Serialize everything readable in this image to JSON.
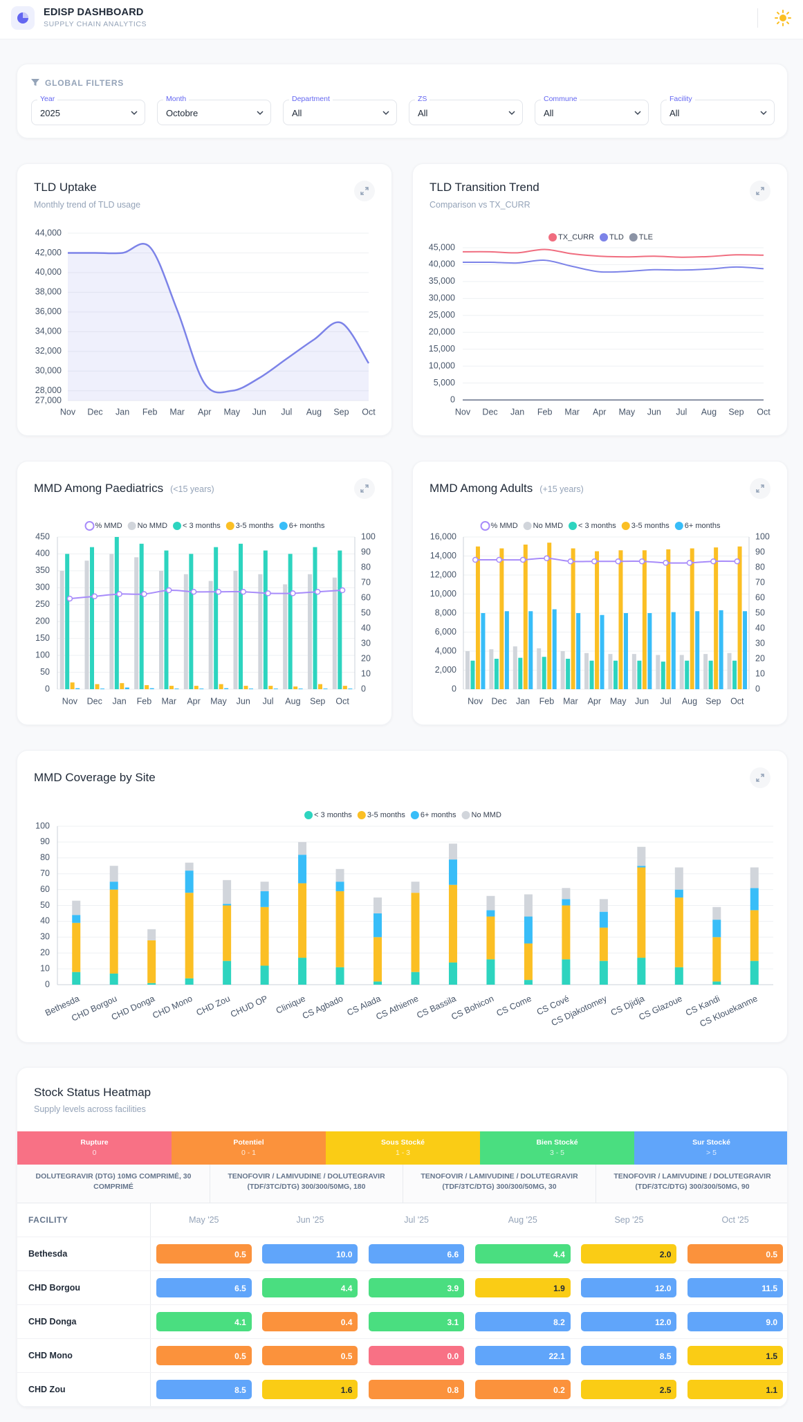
{
  "header": {
    "title": "EDISP DASHBOARD",
    "subtitle": "SUPPLY CHAIN ANALYTICS"
  },
  "filters": {
    "title": "GLOBAL FILTERS",
    "items": [
      {
        "label": "Year",
        "value": "2025"
      },
      {
        "label": "Month",
        "value": "Octobre"
      },
      {
        "label": "Department",
        "value": "All"
      },
      {
        "label": "ZS",
        "value": "All"
      },
      {
        "label": "Commune",
        "value": "All"
      },
      {
        "label": "Facility",
        "value": "All"
      }
    ]
  },
  "chart_data": [
    {
      "type": "area",
      "title": "TLD Uptake",
      "subtitle": "Monthly trend of TLD usage",
      "categories": [
        "Nov",
        "Dec",
        "Jan",
        "Feb",
        "Mar",
        "Apr",
        "May",
        "Jun",
        "Jul",
        "Aug",
        "Sep",
        "Oct"
      ],
      "values": [
        42000,
        42000,
        42000,
        42600,
        36200,
        28750,
        28000,
        29300,
        31250,
        33200,
        34900,
        30800
      ],
      "color": "#7c83e8",
      "ylim": [
        27000,
        44000
      ],
      "yticks": [
        {
          "value": 27000,
          "label": "27,000"
        },
        {
          "value": 28000,
          "label": "28,000"
        },
        {
          "value": 30000,
          "label": "30,000"
        },
        {
          "value": 32000,
          "label": "32,000"
        },
        {
          "value": 34000,
          "label": "34,000"
        },
        {
          "value": 36000,
          "label": "36,000"
        },
        {
          "value": 38000,
          "label": "38,000"
        },
        {
          "value": 40000,
          "label": "40,000"
        },
        {
          "value": 42000,
          "label": "42,000"
        },
        {
          "value": 44000,
          "label": "44,000"
        }
      ],
      "grid": true
    },
    {
      "type": "line",
      "title": "TLD Transition Trend",
      "subtitle": "Comparison vs TX_CURR",
      "categories": [
        "Nov",
        "Dec",
        "Jan",
        "Feb",
        "Mar",
        "Apr",
        "May",
        "Jun",
        "Jul",
        "Aug",
        "Sep",
        "Oct"
      ],
      "series": [
        {
          "name": "TX_CURR",
          "color": "#f06d7f",
          "values": [
            43800,
            43800,
            43500,
            44500,
            43200,
            42500,
            42300,
            42500,
            42200,
            42400,
            42900,
            42800
          ]
        },
        {
          "name": "TLD",
          "color": "#7c83e8",
          "values": [
            40700,
            40700,
            40500,
            41300,
            39500,
            37900,
            38000,
            38500,
            38400,
            38700,
            39300,
            38800
          ]
        },
        {
          "name": "TLE",
          "color": "#8b93a5",
          "values": [
            0,
            0,
            0,
            0,
            0,
            0,
            0,
            0,
            0,
            0,
            0,
            0
          ]
        }
      ],
      "ylim": [
        0,
        45000
      ],
      "yticks": [
        0,
        {
          "value": 5000,
          "label": "5,000"
        },
        {
          "value": 10000,
          "label": "10,000"
        },
        {
          "value": 15000,
          "label": "15,000"
        },
        {
          "value": 20000,
          "label": "20,000"
        },
        {
          "value": 25000,
          "label": "25,000"
        },
        {
          "value": 30000,
          "label": "30,000"
        },
        {
          "value": 35000,
          "label": "35,000"
        },
        {
          "value": 40000,
          "label": "40,000"
        },
        {
          "value": 45000,
          "label": "45,000"
        }
      ],
      "grid": true,
      "legend": "top"
    },
    {
      "type": "combo",
      "title": "MMD Among Paediatrics",
      "subtitle": "(<15 years)",
      "categories": [
        "Nov",
        "Dec",
        "Jan",
        "Feb",
        "Mar",
        "Apr",
        "May",
        "Jun",
        "Jul",
        "Aug",
        "Sep",
        "Oct"
      ],
      "series": [
        {
          "name": "% MMD",
          "color": "#a78bfa",
          "kind": "line",
          "axis": "y2",
          "values": [
            59.5,
            61,
            62.5,
            62.5,
            65,
            64,
            64,
            64,
            63,
            63,
            64,
            65
          ]
        },
        {
          "name": "No MMD",
          "color": "#d1d5db",
          "kind": "bar",
          "values": [
            350,
            380,
            400,
            390,
            350,
            340,
            320,
            350,
            340,
            310,
            340,
            330
          ]
        },
        {
          "name": "< 3 months",
          "color": "#2dd4bf",
          "kind": "bar",
          "values": [
            400,
            420,
            450,
            430,
            410,
            400,
            420,
            430,
            410,
            400,
            420,
            410
          ]
        },
        {
          "name": "3-5 months",
          "color": "#fbbf24",
          "kind": "bar",
          "values": [
            20,
            15,
            18,
            12,
            10,
            10,
            15,
            10,
            10,
            8,
            15,
            10
          ]
        },
        {
          "name": "6+ months",
          "color": "#38bdf8",
          "kind": "bar",
          "values": [
            3,
            2,
            5,
            3,
            2,
            2,
            3,
            2,
            2,
            2,
            2,
            2
          ]
        }
      ],
      "ylim": [
        0,
        450
      ],
      "yticks": [
        0,
        50,
        100,
        150,
        200,
        250,
        300,
        350,
        400,
        450
      ],
      "y2lim": [
        0,
        100
      ],
      "y2ticks": [
        0,
        10,
        20,
        30,
        40,
        50,
        60,
        70,
        80,
        90,
        100
      ],
      "grid": true,
      "legend": "top"
    },
    {
      "type": "combo",
      "title": "MMD Among Adults",
      "subtitle": "(+15 years)",
      "categories": [
        "Nov",
        "Dec",
        "Jan",
        "Feb",
        "Mar",
        "Apr",
        "May",
        "Jun",
        "Jul",
        "Aug",
        "Sep",
        "Oct"
      ],
      "series": [
        {
          "name": "% MMD",
          "color": "#a78bfa",
          "kind": "line",
          "axis": "y2",
          "values": [
            85,
            85,
            85,
            86,
            84,
            84,
            84,
            84,
            83,
            83,
            84,
            84
          ]
        },
        {
          "name": "No MMD",
          "color": "#d1d5db",
          "kind": "bar",
          "values": [
            4000,
            4200,
            4500,
            4300,
            4000,
            3800,
            3700,
            3700,
            3600,
            3600,
            3700,
            3800
          ]
        },
        {
          "name": "< 3 months",
          "color": "#2dd4bf",
          "kind": "bar",
          "values": [
            3000,
            3200,
            3300,
            3400,
            3200,
            3000,
            3000,
            3000,
            2900,
            3000,
            3000,
            3000
          ]
        },
        {
          "name": "3-5 months",
          "color": "#fbbf24",
          "kind": "bar",
          "values": [
            15000,
            14800,
            15200,
            15400,
            14800,
            14500,
            14600,
            14600,
            14700,
            14800,
            14900,
            15000
          ]
        },
        {
          "name": "6+ months",
          "color": "#38bdf8",
          "kind": "bar",
          "values": [
            8000,
            8200,
            8200,
            8400,
            8000,
            7800,
            8000,
            8000,
            8100,
            8200,
            8300,
            8200
          ]
        }
      ],
      "ylim": [
        0,
        16000
      ],
      "yticks": [
        0,
        {
          "value": 2000,
          "label": "2,000"
        },
        {
          "value": 4000,
          "label": "4,000"
        },
        {
          "value": 6000,
          "label": "6,000"
        },
        {
          "value": 8000,
          "label": "8,000"
        },
        {
          "value": 10000,
          "label": "10,000"
        },
        {
          "value": 12000,
          "label": "12,000"
        },
        {
          "value": 14000,
          "label": "14,000"
        },
        {
          "value": 16000,
          "label": "16,000"
        }
      ],
      "y2lim": [
        0,
        100
      ],
      "y2ticks": [
        0,
        10,
        20,
        30,
        40,
        50,
        60,
        70,
        80,
        90,
        100
      ],
      "grid": true,
      "legend": "top"
    },
    {
      "type": "stacked_bar",
      "title": "MMD Coverage by Site",
      "categories": [
        "Bethesda",
        "CHD Borgou",
        "CHD Donga",
        "CHD Mono",
        "CHD Zou",
        "CHUD OP",
        "Clinique",
        "CS Agbado",
        "CS Alada",
        "CS Athieme",
        "CS Bassila",
        "CS Bohicon",
        "CS Come",
        "CS Cové",
        "CS Djakotomey",
        "CS Djidja",
        "CS Glazoue",
        "CS Kandi",
        "CS Klouekanme"
      ],
      "series": [
        {
          "name": "< 3 months",
          "color": "#2dd4bf",
          "values": [
            8,
            7,
            1,
            4,
            15,
            12,
            17,
            11,
            2,
            8,
            14,
            16,
            3,
            16,
            15,
            17,
            11,
            2,
            15
          ]
        },
        {
          "name": "3-5 months",
          "color": "#fbbf24",
          "values": [
            31,
            53,
            27,
            54,
            35,
            37,
            47,
            48,
            28,
            50,
            49,
            27,
            23,
            34,
            21,
            57,
            44,
            28,
            32
          ]
        },
        {
          "name": "6+ months",
          "color": "#38bdf8",
          "values": [
            5,
            5,
            0,
            14,
            1,
            10,
            18,
            6,
            15,
            0,
            16,
            4,
            17,
            4,
            10,
            1,
            5,
            11,
            14
          ]
        },
        {
          "name": "No MMD",
          "color": "#d1d5db",
          "values": [
            9,
            10,
            7,
            5,
            15,
            6,
            8,
            8,
            10,
            7,
            10,
            9,
            14,
            7,
            8,
            12,
            14,
            8,
            13
          ]
        }
      ],
      "ylim": [
        0,
        100
      ],
      "yticks": [
        0,
        10,
        20,
        30,
        40,
        50,
        60,
        70,
        80,
        90,
        100
      ],
      "grid": true,
      "legend": "top"
    }
  ],
  "heatmap": {
    "title": "Stock Status Heatmap",
    "subtitle": "Supply levels across facilities",
    "levels": [
      {
        "name": "Rupture",
        "range": "0",
        "max": 0,
        "color": "#f87185"
      },
      {
        "name": "Potentiel",
        "range": "0 - 1",
        "max": 1,
        "color": "#fb923c"
      },
      {
        "name": "Sous Stocké",
        "range": "1 - 3",
        "max": 3,
        "color": "#facc15"
      },
      {
        "name": "Bien Stocké",
        "range": "3 - 5",
        "max": 5,
        "color": "#4ade80"
      },
      {
        "name": "Sur Stocké",
        "range": "> 5",
        "color": "#60a5fa"
      }
    ],
    "products": [
      "DOLUTEGRAVIR (DTG) 10MG COMPRIMÉ, 30 COMPRIMÉ",
      "TENOFOVIR / LAMIVUDINE / DOLUTEGRAVIR (TDF/3TC/DTG) 300/300/50MG, 180",
      "TENOFOVIR / LAMIVUDINE / DOLUTEGRAVIR (TDF/3TC/DTG) 300/300/50MG, 30",
      "TENOFOVIR / LAMIVUDINE / DOLUTEGRAVIR (TDF/3TC/DTG) 300/300/50MG, 90"
    ],
    "columns": [
      "FACILITY",
      "May '25",
      "Jun '25",
      "Jul '25",
      "Aug '25",
      "Sep '25",
      "Oct '25"
    ],
    "rows": [
      [
        "Bethesda",
        "0.5",
        "10.0",
        "6.6",
        "4.4",
        "2.0",
        "0.5"
      ],
      [
        "CHD Borgou",
        "6.5",
        "4.4",
        "3.9",
        "1.9",
        "12.0",
        "11.5"
      ],
      [
        "CHD Donga",
        "4.1",
        "0.4",
        "3.1",
        "8.2",
        "12.0",
        "9.0"
      ],
      [
        "CHD Mono",
        "0.5",
        "0.5",
        "0.0",
        "22.1",
        "8.5",
        "1.5"
      ],
      [
        "CHD Zou",
        "8.5",
        "1.6",
        "0.8",
        "0.2",
        "2.5",
        "1.1"
      ]
    ]
  }
}
